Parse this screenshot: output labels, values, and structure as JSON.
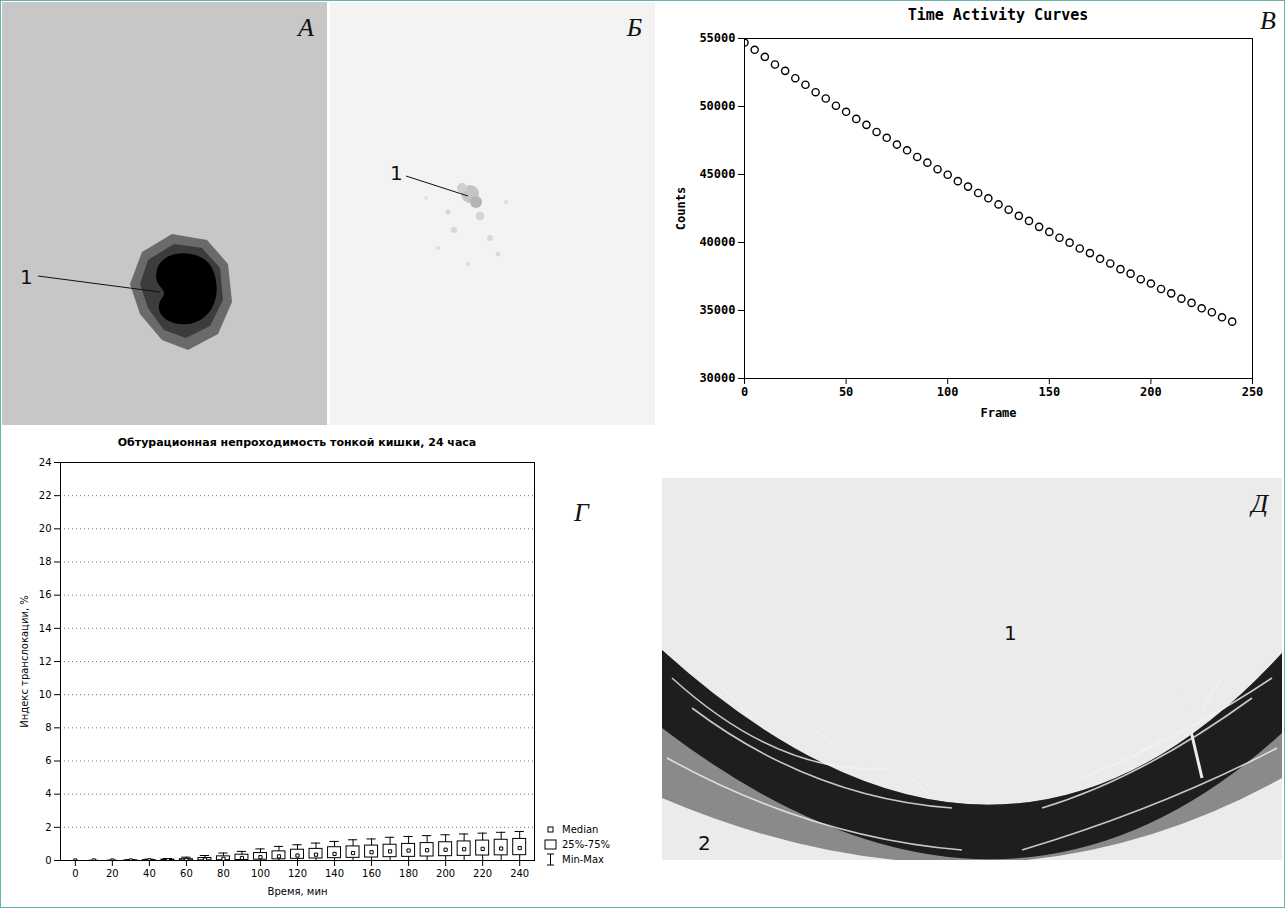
{
  "images": [
    {
      "letter": "А",
      "labels": [
        "1"
      ]
    },
    {
      "letter": "Б",
      "labels": [
        "1"
      ]
    },
    {
      "letter": "Д",
      "labels": [
        "1",
        "2"
      ]
    }
  ],
  "chart_data": [
    {
      "letter": "В",
      "type": "scatter",
      "title": "Time Activity Curves",
      "x_label": "Frame",
      "y_label": "Counts",
      "x": [
        0,
        5,
        10,
        15,
        20,
        25,
        30,
        35,
        40,
        45,
        50,
        55,
        60,
        65,
        70,
        75,
        80,
        85,
        90,
        95,
        100,
        105,
        110,
        115,
        120,
        125,
        130,
        135,
        140,
        145,
        150,
        155,
        160,
        165,
        170,
        175,
        180,
        185,
        190,
        195,
        200,
        205,
        210,
        215,
        220,
        225,
        230,
        235,
        240
      ],
      "values": [
        54700,
        54170,
        53650,
        53090,
        52620,
        52080,
        51600,
        51050,
        50590,
        50060,
        49610,
        49090,
        48650,
        48130,
        47700,
        47200,
        46780,
        46290,
        45870,
        45390,
        44980,
        44510,
        44110,
        43640,
        43250,
        42800,
        42410,
        41960,
        41590,
        41150,
        40780,
        40350,
        39990,
        39560,
        39220,
        38800,
        38460,
        38040,
        37710,
        37300,
        36980,
        36580,
        36260,
        35870,
        35560,
        35160,
        34870,
        34500,
        34180
      ],
      "color": "#000000",
      "marker": "circle-open",
      "xlim": [
        0,
        250
      ],
      "xticks": [
        0,
        50,
        100,
        150,
        200,
        250
      ],
      "ylim": [
        30000,
        55000
      ],
      "yticks": [
        30000,
        35000,
        40000,
        45000,
        50000,
        55000
      ],
      "grid": false
    },
    {
      "letter": "Г",
      "type": "box",
      "title": "Обтурационная непроходимость тонкой кишки, 24 часа",
      "x_label": "Время, мин",
      "y_label": "Индекс транслокации, %",
      "x": [
        0,
        10,
        20,
        30,
        40,
        50,
        60,
        70,
        80,
        90,
        100,
        110,
        120,
        130,
        140,
        150,
        160,
        170,
        180,
        190,
        200,
        210,
        220,
        230,
        240
      ],
      "stats": [
        {
          "name": "Median",
          "values": [
            0,
            0,
            0,
            0,
            0.01,
            0.02,
            0.04,
            0.06,
            0.1,
            0.15,
            0.2,
            0.25,
            0.3,
            0.35,
            0.4,
            0.45,
            0.5,
            0.55,
            0.6,
            0.62,
            0.65,
            0.68,
            0.7,
            0.72,
            0.75
          ]
        },
        {
          "name": "25%-75%",
          "lower": [
            0,
            0,
            0,
            0,
            0,
            0,
            0,
            0.01,
            0.02,
            0.03,
            0.05,
            0.07,
            0.1,
            0.12,
            0.14,
            0.16,
            0.18,
            0.2,
            0.22,
            0.24,
            0.26,
            0.28,
            0.3,
            0.31,
            0.32
          ],
          "upper": [
            0,
            0,
            0,
            0.01,
            0.02,
            0.05,
            0.08,
            0.15,
            0.25,
            0.35,
            0.45,
            0.55,
            0.65,
            0.7,
            0.8,
            0.85,
            0.9,
            0.95,
            1.0,
            1.05,
            1.1,
            1.15,
            1.2,
            1.25,
            1.3
          ]
        },
        {
          "name": "Min-Max",
          "lower": [
            0,
            0,
            0,
            0,
            0,
            0,
            0,
            0,
            0,
            0,
            0,
            0,
            0,
            0,
            0,
            0,
            0,
            0,
            0,
            0,
            0,
            0,
            0,
            0,
            0
          ],
          "upper": [
            0,
            0.02,
            0.03,
            0.05,
            0.08,
            0.12,
            0.2,
            0.3,
            0.45,
            0.55,
            0.7,
            0.85,
            0.95,
            1.05,
            1.15,
            1.25,
            1.3,
            1.4,
            1.45,
            1.5,
            1.55,
            1.6,
            1.65,
            1.7,
            1.75
          ]
        }
      ],
      "color": "#000000",
      "xlim": [
        -8,
        248
      ],
      "xticks": [
        0,
        20,
        40,
        60,
        80,
        100,
        120,
        140,
        160,
        180,
        200,
        220,
        240
      ],
      "ylim": [
        0,
        24
      ],
      "yticks": [
        0,
        2,
        4,
        6,
        8,
        10,
        12,
        14,
        16,
        18,
        20,
        22,
        24
      ],
      "grid": true,
      "legend": "right"
    }
  ]
}
